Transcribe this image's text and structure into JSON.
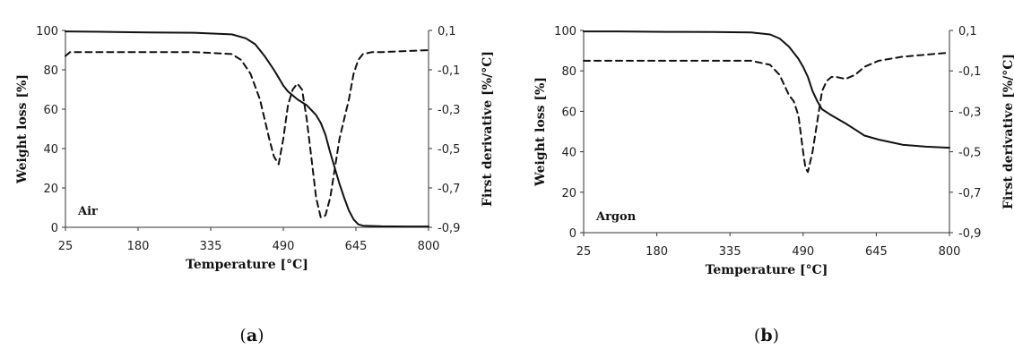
{
  "chart_data": [
    {
      "type": "line",
      "caption_letter": "a",
      "annotation": "Air",
      "xlabel": "Temperature [°C]",
      "ylabel": "Weight loss [%]",
      "y2label": "First derivative [%/°C]",
      "xlim": [
        25,
        800
      ],
      "ylim": [
        0,
        100
      ],
      "y2lim": [
        -0.9,
        0.1
      ],
      "x_ticks": [
        "25",
        "180",
        "335",
        "490",
        "645",
        "800"
      ],
      "y_ticks": [
        "0",
        "20",
        "40",
        "60",
        "80",
        "100"
      ],
      "y2_ticks": [
        "-0,9",
        "-0,7",
        "-0,5",
        "-0,3",
        "-0,1",
        "0,1"
      ],
      "grid": false,
      "series": [
        {
          "axis": "left",
          "style": "solid",
          "x": [
            25,
            100,
            200,
            300,
            380,
            410,
            430,
            450,
            470,
            480,
            490,
            500,
            520,
            540,
            560,
            570,
            580,
            590,
            600,
            610,
            620,
            630,
            640,
            650,
            660,
            700,
            750,
            800
          ],
          "y": [
            99.5,
            99.3,
            99,
            98.8,
            98,
            96,
            93,
            87,
            80,
            76,
            72,
            69,
            65,
            62,
            57,
            53,
            47,
            38,
            30,
            22,
            15,
            8.5,
            4,
            1.5,
            0.8,
            0.5,
            0.4,
            0.4
          ]
        },
        {
          "axis": "right",
          "style": "dashed",
          "x": [
            25,
            35,
            100,
            200,
            300,
            380,
            400,
            420,
            440,
            460,
            470,
            480,
            490,
            500,
            510,
            520,
            530,
            540,
            550,
            560,
            570,
            580,
            590,
            600,
            610,
            620,
            630,
            640,
            650,
            660,
            680,
            700,
            750,
            800
          ],
          "y": [
            -0.03,
            -0.01,
            -0.01,
            -0.01,
            -0.01,
            -0.02,
            -0.05,
            -0.12,
            -0.25,
            -0.45,
            -0.54,
            -0.58,
            -0.45,
            -0.28,
            -0.2,
            -0.17,
            -0.2,
            -0.35,
            -0.55,
            -0.75,
            -0.85,
            -0.84,
            -0.75,
            -0.6,
            -0.45,
            -0.35,
            -0.25,
            -0.12,
            -0.05,
            -0.02,
            -0.01,
            -0.01,
            -0.005,
            0
          ]
        }
      ]
    },
    {
      "type": "line",
      "caption_letter": "b",
      "annotation": "Argon",
      "xlabel": "Temperature [°C]",
      "ylabel": "Weight loss [%]",
      "y2label": "First derivative [%/°C]",
      "xlim": [
        25,
        800
      ],
      "ylim": [
        0,
        100
      ],
      "y2lim": [
        -0.9,
        0.1
      ],
      "x_ticks": [
        "25",
        "180",
        "335",
        "490",
        "645",
        "800"
      ],
      "y_ticks": [
        "0",
        "20",
        "40",
        "60",
        "80",
        "100"
      ],
      "y2_ticks": [
        "-0,9",
        "-0,7",
        "-0,5",
        "-0,3",
        "-0,1",
        "0,1"
      ],
      "grid": false,
      "series": [
        {
          "axis": "left",
          "style": "solid",
          "x": [
            25,
            100,
            200,
            300,
            380,
            420,
            440,
            460,
            480,
            490,
            500,
            510,
            520,
            530,
            550,
            580,
            600,
            620,
            650,
            680,
            700,
            750,
            800
          ],
          "y": [
            99.5,
            99.5,
            99.3,
            99.2,
            99,
            98,
            96,
            92,
            86,
            82,
            77,
            70,
            65,
            61,
            58,
            54,
            51,
            48,
            46,
            44.5,
            43.5,
            42.5,
            42
          ]
        },
        {
          "axis": "right",
          "style": "dashed",
          "x": [
            25,
            100,
            200,
            300,
            380,
            420,
            440,
            460,
            470,
            480,
            490,
            495,
            500,
            510,
            520,
            530,
            540,
            550,
            560,
            580,
            600,
            620,
            650,
            700,
            750,
            800
          ],
          "y": [
            -0.05,
            -0.05,
            -0.05,
            -0.05,
            -0.05,
            -0.07,
            -0.12,
            -0.22,
            -0.25,
            -0.32,
            -0.5,
            -0.58,
            -0.6,
            -0.5,
            -0.35,
            -0.2,
            -0.15,
            -0.13,
            -0.13,
            -0.14,
            -0.12,
            -0.08,
            -0.05,
            -0.03,
            -0.02,
            -0.01
          ]
        }
      ]
    }
  ]
}
